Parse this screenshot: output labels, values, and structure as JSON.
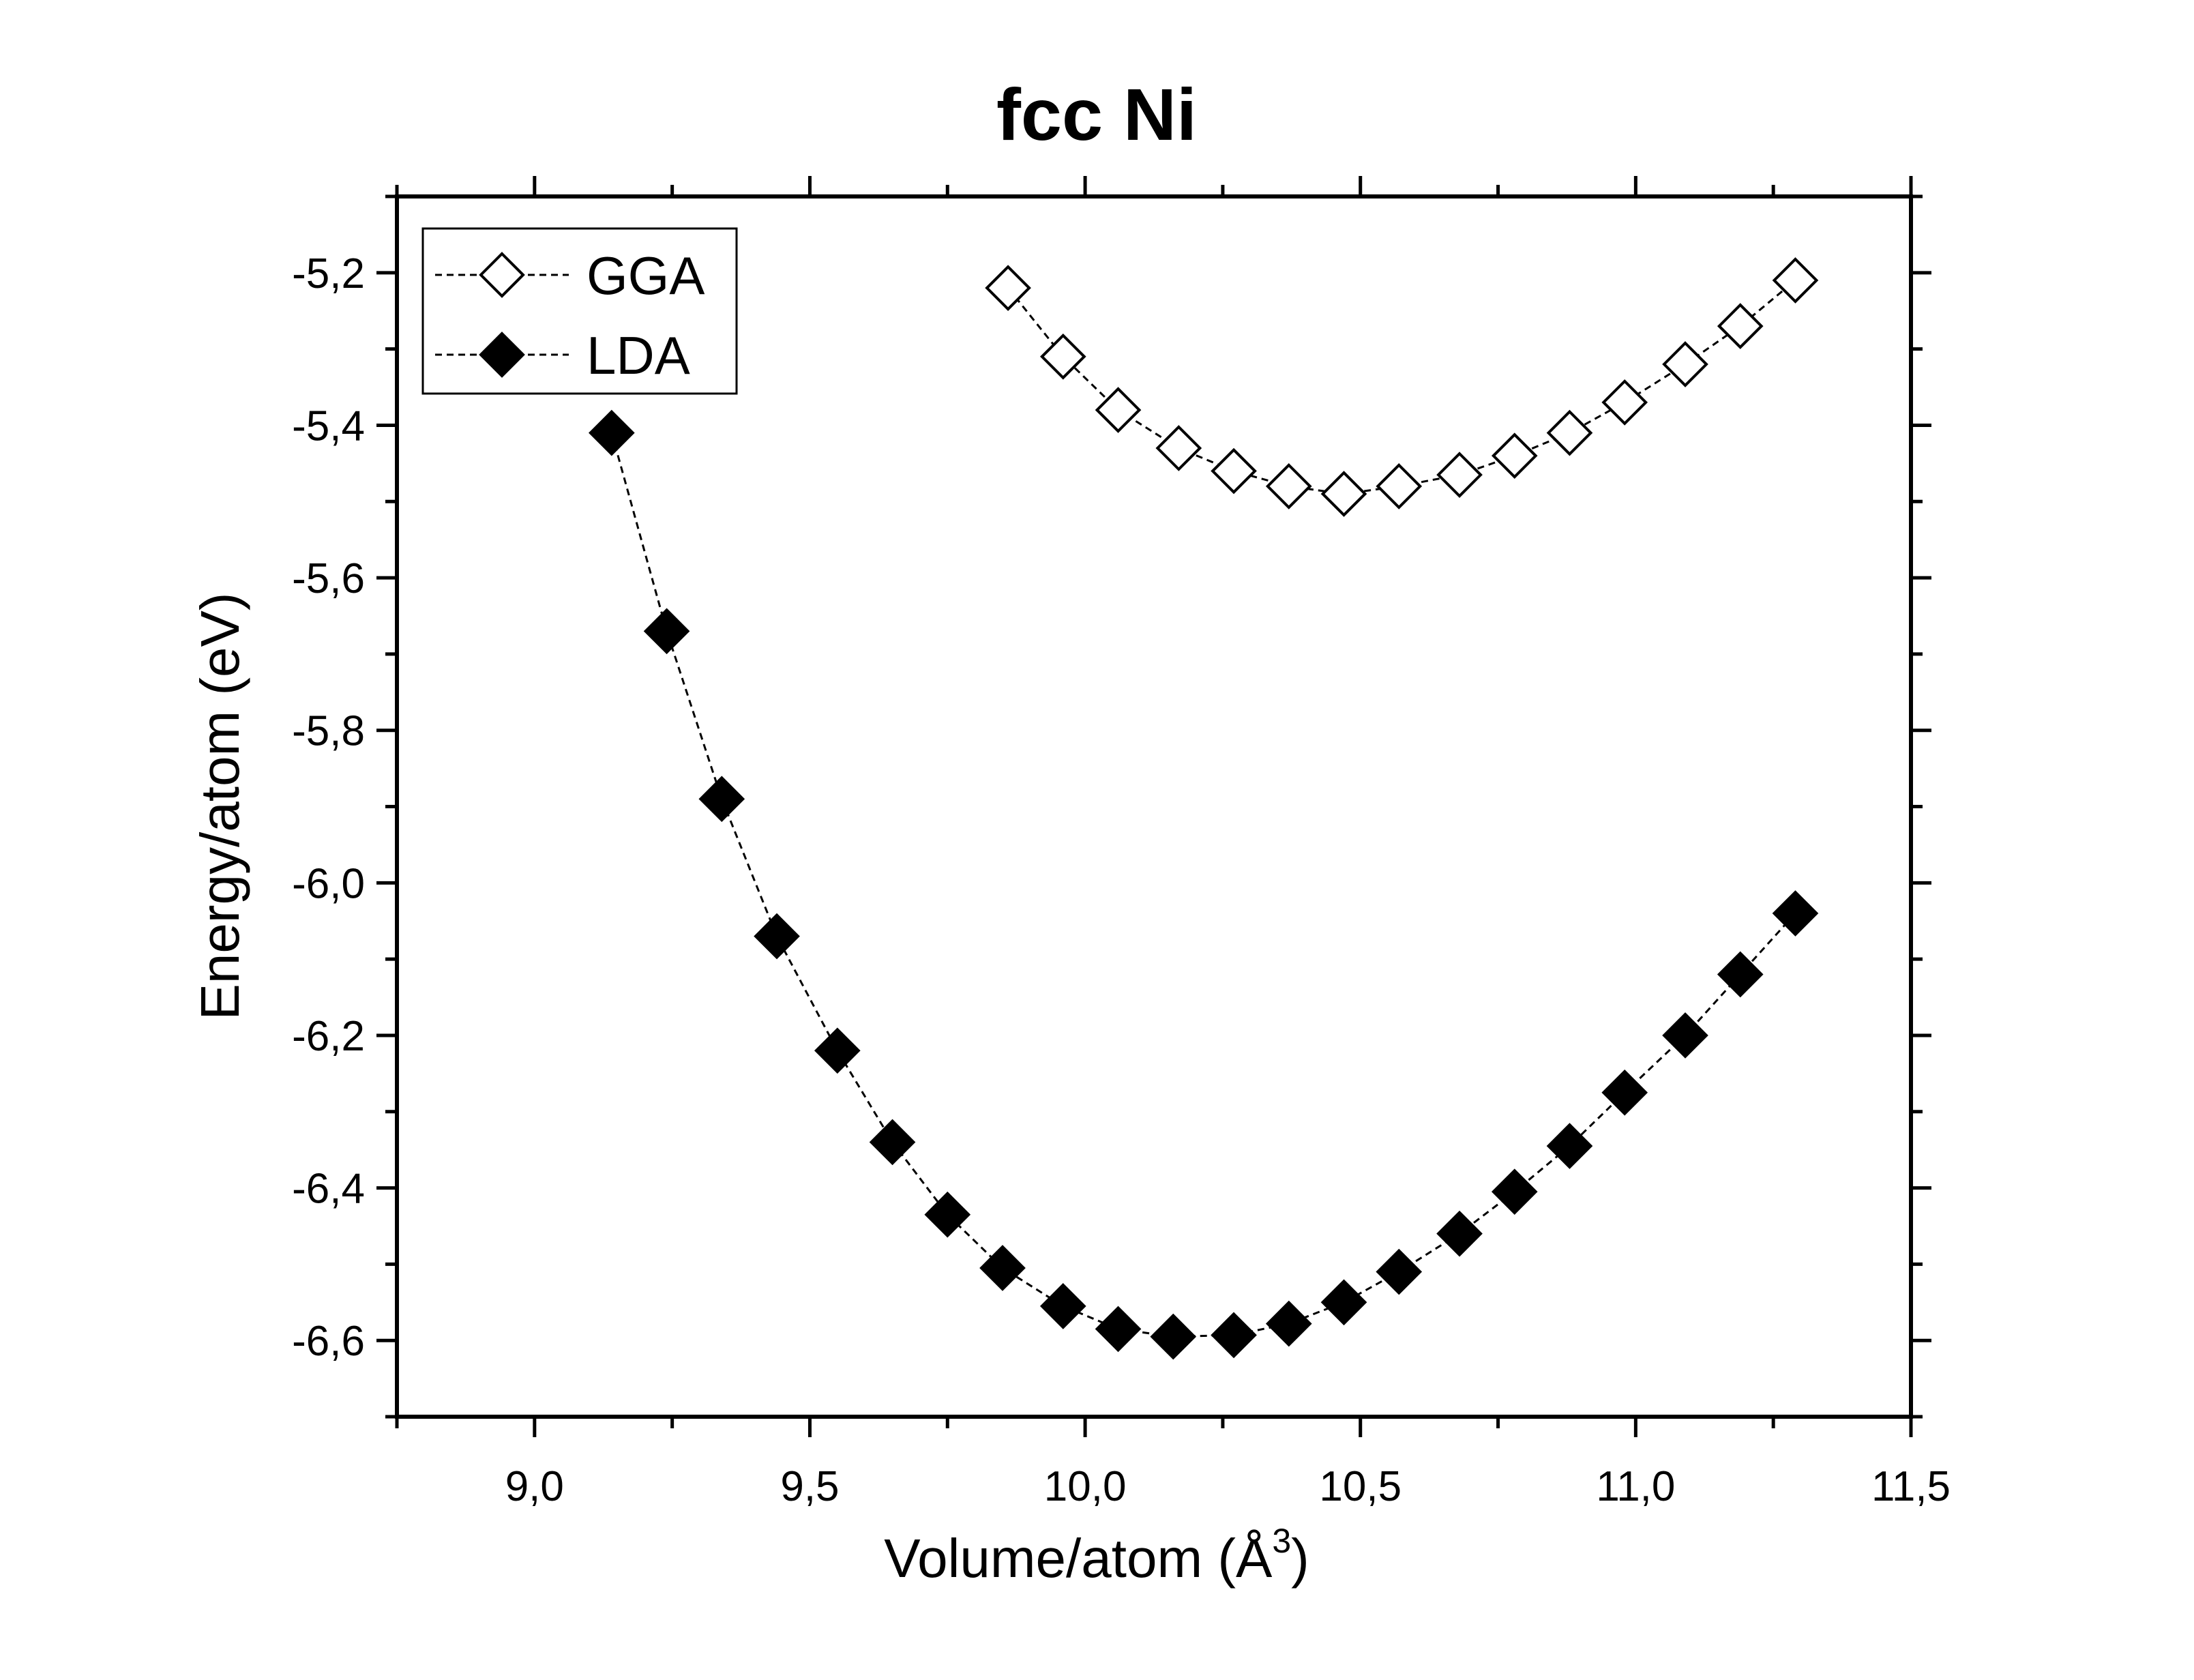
{
  "chart_data": {
    "type": "scatter",
    "title": "fcc Ni",
    "xlabel": "Volume/atom (Å",
    "xlabel_sup": "3",
    "xlabel_end": ")",
    "ylabel": "Energy/atom (eV)",
    "xlim": [
      8.75,
      11.5
    ],
    "ylim": [
      -6.7,
      -5.1
    ],
    "x_ticks": [
      9.0,
      9.5,
      10.0,
      10.5,
      11.0,
      11.5
    ],
    "x_tick_labels": [
      "9,0",
      "9,5",
      "10,0",
      "10,5",
      "11,0",
      "11,5"
    ],
    "y_ticks": [
      -5.2,
      -5.4,
      -5.6,
      -5.8,
      -6.0,
      -6.2,
      -6.4,
      -6.6
    ],
    "y_tick_labels": [
      "-5,2",
      "-5,4",
      "-5,6",
      "-5,8",
      "-6,0",
      "-6,2",
      "-6,4",
      "-6,6"
    ],
    "grid": false,
    "legend_position": "top-left",
    "series": [
      {
        "name": "GGA",
        "marker": "open-diamond",
        "line": "dashed",
        "color": "#000000",
        "x": [
          9.86,
          9.96,
          10.06,
          10.17,
          10.27,
          10.37,
          10.47,
          10.57,
          10.68,
          10.78,
          10.88,
          10.98,
          11.09,
          11.19,
          11.29
        ],
        "y": [
          -5.22,
          -5.31,
          -5.38,
          -5.43,
          -5.46,
          -5.48,
          -5.49,
          -5.48,
          -5.465,
          -5.44,
          -5.41,
          -5.37,
          -5.32,
          -5.27,
          -5.21
        ]
      },
      {
        "name": "LDA",
        "marker": "filled-diamond",
        "line": "dashed",
        "color": "#000000",
        "x": [
          9.14,
          9.24,
          9.34,
          9.44,
          9.55,
          9.65,
          9.75,
          9.85,
          9.96,
          10.06,
          10.16,
          10.27,
          10.37,
          10.47,
          10.57,
          10.68,
          10.78,
          10.88,
          10.98,
          11.09,
          11.19,
          11.29
        ],
        "y": [
          -5.41,
          -5.67,
          -5.89,
          -6.07,
          -6.22,
          -6.34,
          -6.435,
          -6.505,
          -6.555,
          -6.585,
          -6.595,
          -6.593,
          -6.578,
          -6.55,
          -6.51,
          -6.46,
          -6.405,
          -6.345,
          -6.275,
          -6.2,
          -6.12,
          -6.04
        ]
      }
    ]
  }
}
